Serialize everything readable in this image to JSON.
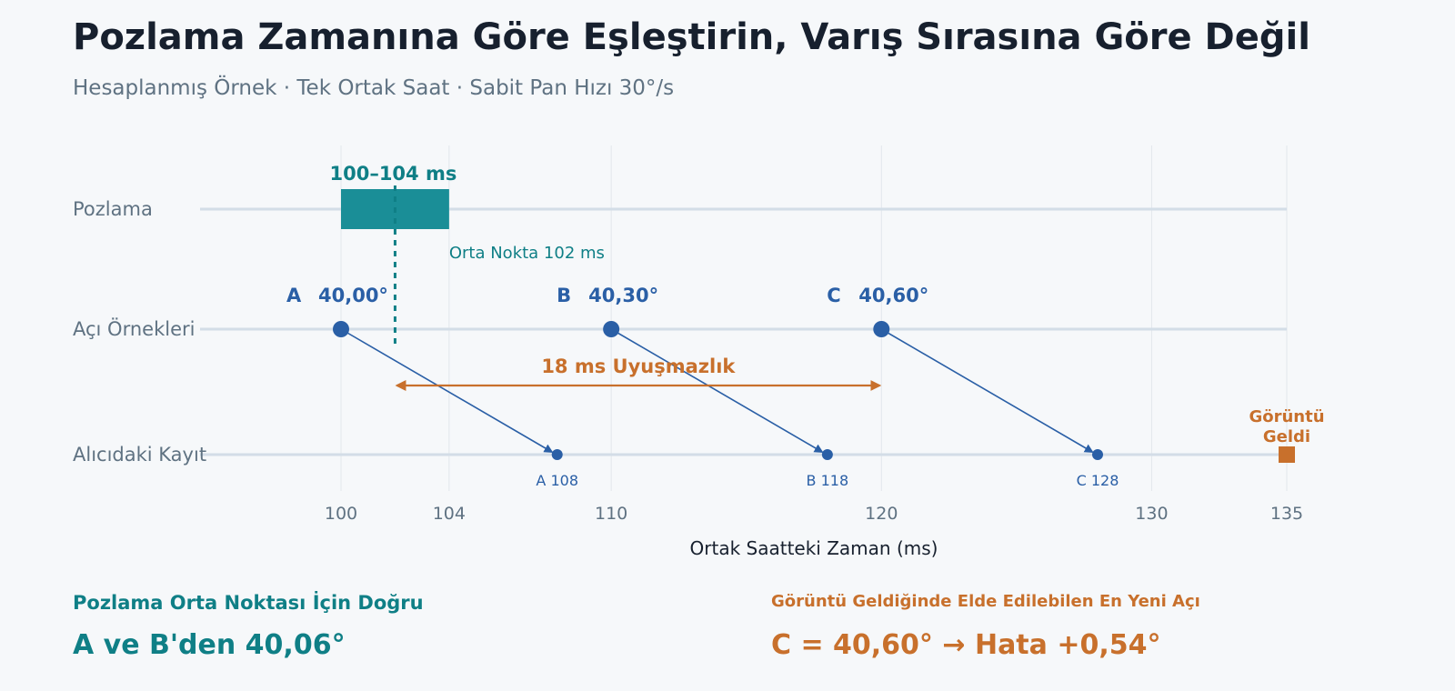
{
  "header": {
    "title": "Pozlama Zamanına Göre Eşleştirin, Varış Sırasına Göre Değil",
    "subtitle": "Hesaplanmış Örnek · Tek Ortak Saat · Sabit Pan Hızı 30°/s"
  },
  "colors": {
    "teal": "#1a8e97",
    "teal_text": "#0f7f86",
    "blue": "#2a5fa6",
    "orange": "#c8702c",
    "lane": "#d3dde7",
    "grid": "#e2e7ec"
  },
  "lanes": {
    "exposure": "Pozlama",
    "samples": "Açı Örnekleri",
    "receiver": "Alıcıdaki Kayıt"
  },
  "axis": {
    "label": "Ortak Saatteki Zaman (ms)",
    "min": 100,
    "max": 135,
    "ticks": [
      {
        "value": 100,
        "label": "100"
      },
      {
        "value": 104,
        "label": "104"
      },
      {
        "value": 110,
        "label": "110"
      },
      {
        "value": 120,
        "label": "120"
      },
      {
        "value": 130,
        "label": "130"
      },
      {
        "value": 135,
        "label": "135"
      }
    ]
  },
  "exposure": {
    "start": 100,
    "end": 104,
    "label": "100–104 ms",
    "midpoint": 102,
    "midpoint_label": "Orta Nokta 102 ms"
  },
  "samples": [
    {
      "id": "A",
      "t": 100,
      "angle": "40,00°",
      "arrival": 108,
      "arrival_label": "A 108"
    },
    {
      "id": "B",
      "t": 110,
      "angle": "40,30°",
      "arrival": 118,
      "arrival_label": "B 118"
    },
    {
      "id": "C",
      "t": 120,
      "angle": "40,60°",
      "arrival": 128,
      "arrival_label": "C 128"
    }
  ],
  "mismatch": {
    "from": 102,
    "to": 120,
    "label": "18 ms Uyuşmazlık"
  },
  "frame_arrival": {
    "t": 135,
    "label_line1": "Görüntü",
    "label_line2": "Geldi"
  },
  "footer": {
    "left_label": "Pozlama Orta Noktası İçin Doğru",
    "left_value": "A ve B'den 40,06°",
    "right_label": "Görüntü Geldiğinde Elde Edilebilen En Yeni Açı",
    "right_value": "C = 40,60°  →  Hata +0,54°"
  }
}
